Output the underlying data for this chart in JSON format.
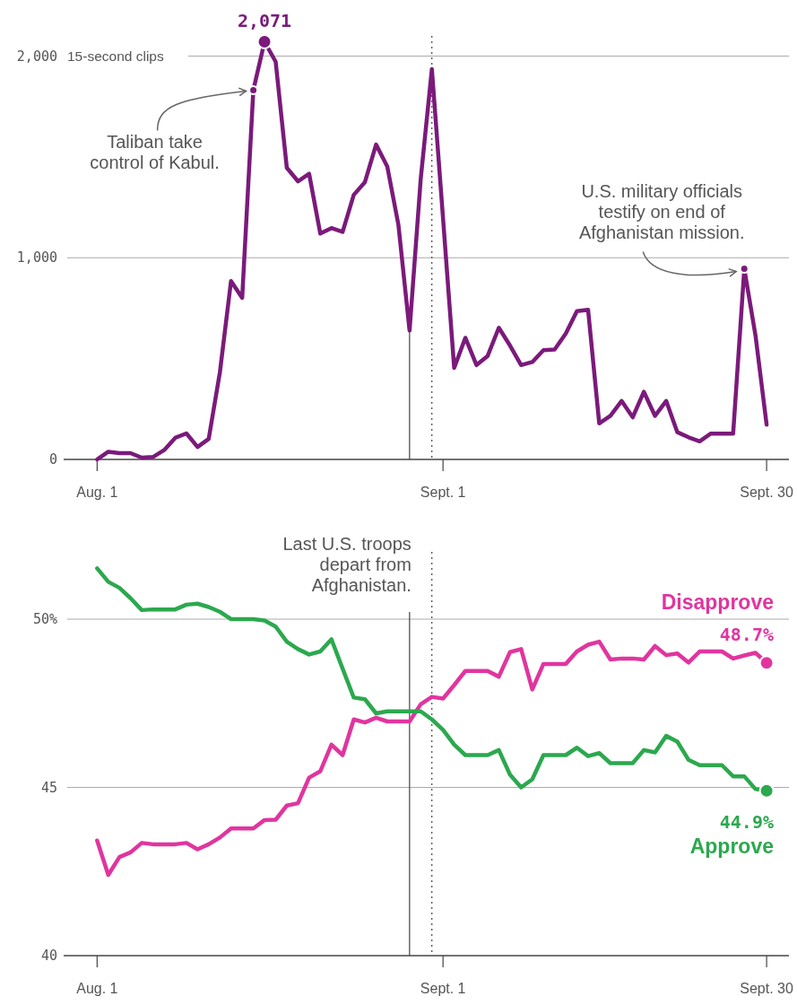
{
  "chart_data": [
    {
      "type": "line",
      "x": [
        "--08-01",
        "--08-02",
        "--08-03",
        "--08-04",
        "--08-05",
        "--08-06",
        "--08-07",
        "--08-08",
        "--08-09",
        "--08-10",
        "--08-11",
        "--08-12",
        "--08-13",
        "--08-14",
        "--08-15",
        "--08-16",
        "--08-17",
        "--08-18",
        "--08-19",
        "--08-20",
        "--08-21",
        "--08-22",
        "--08-23",
        "--08-24",
        "--08-25",
        "--08-26",
        "--08-27",
        "--08-28",
        "--08-29",
        "--08-30",
        "--08-31",
        "--09-01",
        "--09-02",
        "--09-03",
        "--09-04",
        "--09-05",
        "--09-06",
        "--09-07",
        "--09-08",
        "--09-09",
        "--09-10",
        "--09-11",
        "--09-12",
        "--09-13",
        "--09-14",
        "--09-15",
        "--09-16",
        "--09-17",
        "--09-18",
        "--09-19",
        "--09-20",
        "--09-21",
        "--09-22",
        "--09-23",
        "--09-24",
        "--09-25",
        "--09-26",
        "--09-27",
        "--09-28",
        "--09-29",
        "--09-30"
      ],
      "series": [
        {
          "color": "#7b1a7b",
          "values": [
            0,
            38,
            31,
            31,
            9,
            12,
            46,
            107,
            129,
            62,
            102,
            431,
            884,
            801,
            1831,
            2071,
            1972,
            1446,
            1379,
            1416,
            1120,
            1147,
            1128,
            1312,
            1375,
            1561,
            1453,
            1164,
            639,
            1390,
            1935,
            1196,
            454,
            603,
            468,
            513,
            653,
            565,
            468,
            483,
            542,
            545,
            624,
            735,
            742,
            179,
            216,
            290,
            209,
            335,
            216,
            290,
            135,
            110,
            90,
            128,
            128,
            128,
            945,
            616,
            172
          ],
          "value_labels": [
            null,
            null,
            null,
            null,
            null,
            null,
            null,
            null,
            null,
            null,
            null,
            null,
            null,
            null,
            null,
            "2,071",
            null,
            null,
            null,
            null,
            null,
            null,
            null,
            null,
            null,
            null,
            null,
            null,
            null,
            null,
            null,
            null,
            null,
            null,
            null,
            null,
            null,
            null,
            null,
            null,
            null,
            null,
            null,
            null,
            null,
            null,
            null,
            null,
            null,
            null,
            null,
            null,
            null,
            null,
            null,
            null,
            null,
            null,
            null,
            null,
            null
          ]
        }
      ],
      "xlim": [
        "--07-29",
        "--10-02"
      ],
      "xticks": [
        {
          "value": "--08-01",
          "label": "Aug. 1"
        },
        {
          "value": "--09-01",
          "label": "Sept. 1"
        },
        {
          "value": "--09-30",
          "label": "Sept. 30"
        }
      ],
      "ylim": [
        0,
        2100
      ],
      "yticks": [
        0,
        {
          "value": 1000,
          "label": "1,000"
        },
        {
          "value": 2000,
          "label": "2,000"
        }
      ],
      "ylabel": "15-second clips",
      "grid": "y",
      "line_style": "solid",
      "ref_lines": [
        {
          "axis": "x",
          "value": "--08-29",
          "line_style": "solid"
        },
        {
          "axis": "x",
          "value": "--08-31",
          "line_style": "dotted"
        }
      ],
      "annotations": [
        {
          "text": "Taliban take control of Kabul.",
          "x": "--08-15",
          "y": 1831
        },
        {
          "text": "U.S. military officials testify on end of Afghanistan mission.",
          "x": "--09-28",
          "y": 945
        }
      ]
    },
    {
      "type": "line",
      "x": [
        "--08-01",
        "--08-02",
        "--08-03",
        "--08-04",
        "--08-05",
        "--08-06",
        "--08-07",
        "--08-08",
        "--08-09",
        "--08-10",
        "--08-11",
        "--08-12",
        "--08-13",
        "--08-14",
        "--08-15",
        "--08-16",
        "--08-17",
        "--08-18",
        "--08-19",
        "--08-20",
        "--08-21",
        "--08-22",
        "--08-23",
        "--08-24",
        "--08-25",
        "--08-26",
        "--08-27",
        "--08-28",
        "--08-29",
        "--08-30",
        "--08-31",
        "--09-01",
        "--09-02",
        "--09-03",
        "--09-04",
        "--09-05",
        "--09-06",
        "--09-07",
        "--09-08",
        "--09-09",
        "--09-10",
        "--09-11",
        "--09-12",
        "--09-13",
        "--09-14",
        "--09-15",
        "--09-16",
        "--09-17",
        "--09-18",
        "--09-19",
        "--09-20",
        "--09-21",
        "--09-22",
        "--09-23",
        "--09-24",
        "--09-25",
        "--09-26",
        "--09-27",
        "--09-28",
        "--09-29",
        "--09-30"
      ],
      "series": [
        {
          "name": "Disapprove",
          "color": "#e0359f",
          "values": [
            43.42,
            42.4,
            42.93,
            43.07,
            43.35,
            43.31,
            43.31,
            43.31,
            43.35,
            43.16,
            43.31,
            43.51,
            43.78,
            43.78,
            43.78,
            44.03,
            44.04,
            44.46,
            44.53,
            45.29,
            45.48,
            46.27,
            45.96,
            47.02,
            46.93,
            47.07,
            46.96,
            46.96,
            46.96,
            47.47,
            47.69,
            47.64,
            48.04,
            48.46,
            48.46,
            48.46,
            48.29,
            49.02,
            49.11,
            47.91,
            48.67,
            48.67,
            48.67,
            49.04,
            49.24,
            49.33,
            48.8,
            48.83,
            48.83,
            48.8,
            49.2,
            48.93,
            48.98,
            48.71,
            49.04,
            49.04,
            49.04,
            48.83,
            48.92,
            49.0,
            48.7
          ],
          "value_labels": [
            null,
            null,
            null,
            null,
            null,
            null,
            null,
            null,
            null,
            null,
            null,
            null,
            null,
            null,
            null,
            null,
            null,
            null,
            null,
            null,
            null,
            null,
            null,
            null,
            null,
            null,
            null,
            null,
            null,
            null,
            null,
            null,
            null,
            null,
            null,
            null,
            null,
            null,
            null,
            null,
            null,
            null,
            null,
            null,
            null,
            null,
            null,
            null,
            null,
            null,
            null,
            null,
            null,
            null,
            null,
            null,
            null,
            null,
            null,
            null,
            "48.7%"
          ]
        },
        {
          "name": "Approve",
          "color": "#2ca84e",
          "values": [
            51.51,
            51.11,
            50.93,
            50.62,
            50.27,
            50.29,
            50.29,
            50.29,
            50.43,
            50.46,
            50.36,
            50.22,
            50.0,
            50.0,
            50.0,
            49.96,
            49.78,
            49.33,
            49.11,
            48.95,
            49.04,
            49.4,
            48.53,
            47.67,
            47.62,
            47.2,
            47.26,
            47.26,
            47.26,
            47.26,
            47.02,
            46.71,
            46.27,
            45.96,
            45.96,
            45.96,
            46.11,
            45.38,
            45.0,
            45.24,
            45.96,
            45.96,
            45.96,
            46.18,
            45.93,
            46.02,
            45.72,
            45.72,
            45.72,
            46.11,
            46.04,
            46.53,
            46.36,
            45.82,
            45.66,
            45.66,
            45.66,
            45.33,
            45.33,
            44.95,
            44.9
          ],
          "value_labels": [
            null,
            null,
            null,
            null,
            null,
            null,
            null,
            null,
            null,
            null,
            null,
            null,
            null,
            null,
            null,
            null,
            null,
            null,
            null,
            null,
            null,
            null,
            null,
            null,
            null,
            null,
            null,
            null,
            null,
            null,
            null,
            null,
            null,
            null,
            null,
            null,
            null,
            null,
            null,
            null,
            null,
            null,
            null,
            null,
            null,
            null,
            null,
            null,
            null,
            null,
            null,
            null,
            null,
            null,
            null,
            null,
            null,
            null,
            null,
            null,
            "44.9%"
          ]
        }
      ],
      "xlim": [
        "--07-29",
        "--10-02"
      ],
      "xticks": [
        {
          "value": "--08-01",
          "label": "Aug. 1"
        },
        {
          "value": "--09-01",
          "label": "Sept. 1"
        },
        {
          "value": "--09-30",
          "label": "Sept. 30"
        }
      ],
      "ylim": [
        40,
        52
      ],
      "yticks": [
        40,
        45,
        {
          "value": 50,
          "label": "50%"
        }
      ],
      "grid": "y",
      "line_style": "solid",
      "ref_lines": [
        {
          "axis": "x",
          "value": "--08-29",
          "line_style": "solid",
          "label": "Last U.S. troops depart from Afghanistan."
        },
        {
          "axis": "x",
          "value": "--08-31",
          "line_style": "dotted"
        }
      ]
    }
  ]
}
